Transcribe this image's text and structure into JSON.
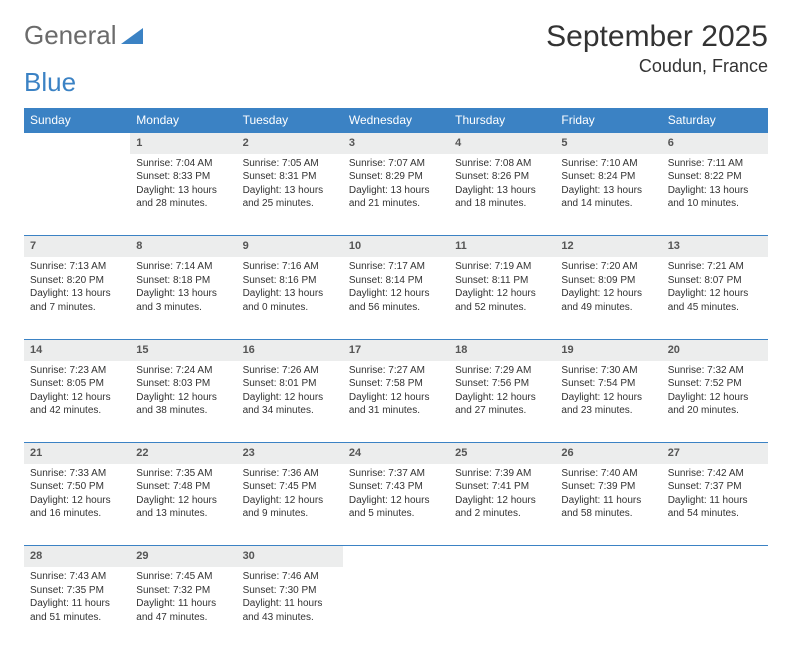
{
  "logo": {
    "text1": "General",
    "text2": "Blue"
  },
  "title": "September 2025",
  "subtitle": "Coudun, France",
  "headers": [
    "Sunday",
    "Monday",
    "Tuesday",
    "Wednesday",
    "Thursday",
    "Friday",
    "Saturday"
  ],
  "colors": {
    "header_bg": "#3b82c4",
    "header_fg": "#ffffff",
    "daynum_bg": "#eceded",
    "border": "#3b82c4",
    "text": "#333333",
    "body_bg": "#ffffff"
  },
  "layout": {
    "first_weekday_index": 1,
    "days_in_month": 30,
    "rows": 5
  },
  "days": {
    "1": {
      "sunrise": "7:04 AM",
      "sunset": "8:33 PM",
      "daylight": "13 hours and 28 minutes."
    },
    "2": {
      "sunrise": "7:05 AM",
      "sunset": "8:31 PM",
      "daylight": "13 hours and 25 minutes."
    },
    "3": {
      "sunrise": "7:07 AM",
      "sunset": "8:29 PM",
      "daylight": "13 hours and 21 minutes."
    },
    "4": {
      "sunrise": "7:08 AM",
      "sunset": "8:26 PM",
      "daylight": "13 hours and 18 minutes."
    },
    "5": {
      "sunrise": "7:10 AM",
      "sunset": "8:24 PM",
      "daylight": "13 hours and 14 minutes."
    },
    "6": {
      "sunrise": "7:11 AM",
      "sunset": "8:22 PM",
      "daylight": "13 hours and 10 minutes."
    },
    "7": {
      "sunrise": "7:13 AM",
      "sunset": "8:20 PM",
      "daylight": "13 hours and 7 minutes."
    },
    "8": {
      "sunrise": "7:14 AM",
      "sunset": "8:18 PM",
      "daylight": "13 hours and 3 minutes."
    },
    "9": {
      "sunrise": "7:16 AM",
      "sunset": "8:16 PM",
      "daylight": "13 hours and 0 minutes."
    },
    "10": {
      "sunrise": "7:17 AM",
      "sunset": "8:14 PM",
      "daylight": "12 hours and 56 minutes."
    },
    "11": {
      "sunrise": "7:19 AM",
      "sunset": "8:11 PM",
      "daylight": "12 hours and 52 minutes."
    },
    "12": {
      "sunrise": "7:20 AM",
      "sunset": "8:09 PM",
      "daylight": "12 hours and 49 minutes."
    },
    "13": {
      "sunrise": "7:21 AM",
      "sunset": "8:07 PM",
      "daylight": "12 hours and 45 minutes."
    },
    "14": {
      "sunrise": "7:23 AM",
      "sunset": "8:05 PM",
      "daylight": "12 hours and 42 minutes."
    },
    "15": {
      "sunrise": "7:24 AM",
      "sunset": "8:03 PM",
      "daylight": "12 hours and 38 minutes."
    },
    "16": {
      "sunrise": "7:26 AM",
      "sunset": "8:01 PM",
      "daylight": "12 hours and 34 minutes."
    },
    "17": {
      "sunrise": "7:27 AM",
      "sunset": "7:58 PM",
      "daylight": "12 hours and 31 minutes."
    },
    "18": {
      "sunrise": "7:29 AM",
      "sunset": "7:56 PM",
      "daylight": "12 hours and 27 minutes."
    },
    "19": {
      "sunrise": "7:30 AM",
      "sunset": "7:54 PM",
      "daylight": "12 hours and 23 minutes."
    },
    "20": {
      "sunrise": "7:32 AM",
      "sunset": "7:52 PM",
      "daylight": "12 hours and 20 minutes."
    },
    "21": {
      "sunrise": "7:33 AM",
      "sunset": "7:50 PM",
      "daylight": "12 hours and 16 minutes."
    },
    "22": {
      "sunrise": "7:35 AM",
      "sunset": "7:48 PM",
      "daylight": "12 hours and 13 minutes."
    },
    "23": {
      "sunrise": "7:36 AM",
      "sunset": "7:45 PM",
      "daylight": "12 hours and 9 minutes."
    },
    "24": {
      "sunrise": "7:37 AM",
      "sunset": "7:43 PM",
      "daylight": "12 hours and 5 minutes."
    },
    "25": {
      "sunrise": "7:39 AM",
      "sunset": "7:41 PM",
      "daylight": "12 hours and 2 minutes."
    },
    "26": {
      "sunrise": "7:40 AM",
      "sunset": "7:39 PM",
      "daylight": "11 hours and 58 minutes."
    },
    "27": {
      "sunrise": "7:42 AM",
      "sunset": "7:37 PM",
      "daylight": "11 hours and 54 minutes."
    },
    "28": {
      "sunrise": "7:43 AM",
      "sunset": "7:35 PM",
      "daylight": "11 hours and 51 minutes."
    },
    "29": {
      "sunrise": "7:45 AM",
      "sunset": "7:32 PM",
      "daylight": "11 hours and 47 minutes."
    },
    "30": {
      "sunrise": "7:46 AM",
      "sunset": "7:30 PM",
      "daylight": "11 hours and 43 minutes."
    }
  },
  "labels": {
    "sunrise": "Sunrise:",
    "sunset": "Sunset:",
    "daylight": "Daylight:"
  }
}
